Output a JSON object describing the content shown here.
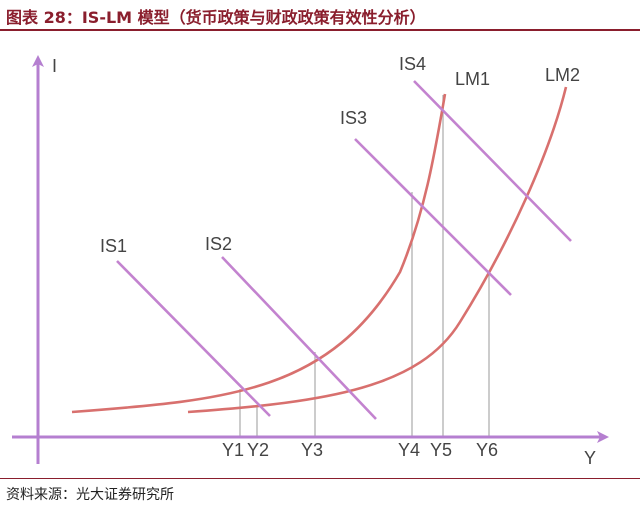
{
  "header": {
    "title": "图表 28：IS-LM 模型（货币政策与财政政策有效性分析）"
  },
  "footer": {
    "source": "资料来源：光大证券研究所"
  },
  "colors": {
    "axis": "#b57fd0",
    "is": "#c383cf",
    "lm": "#d8706e",
    "drop": "#aaaaaa",
    "title": "#8a1e2d"
  },
  "chart_data": {
    "type": "line",
    "title": "",
    "xlabel": "Y",
    "ylabel": "I",
    "is_curves": [
      "IS1",
      "IS2",
      "IS3",
      "IS4"
    ],
    "lm_curves": [
      "LM1",
      "LM2"
    ],
    "equilibrium_labels": [
      "Y1",
      "Y2",
      "Y3",
      "Y4",
      "Y5",
      "Y6"
    ]
  }
}
